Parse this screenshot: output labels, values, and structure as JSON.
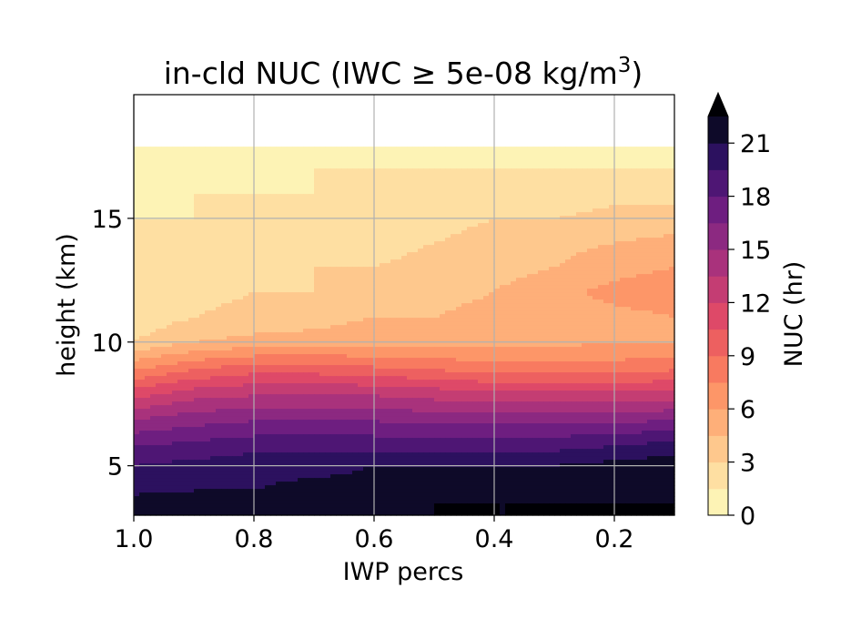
{
  "chart_data": {
    "type": "heatmap",
    "subtype": "filled-contour",
    "title_main": "in-cld NUC (IWC ",
    "title_symbol": "≥",
    "title_value": " 5e-08 kg/m",
    "title_superscript": "3",
    "title_close": ")",
    "xlabel": "IWP percs",
    "ylabel": "height (km)",
    "x_inverted": true,
    "xlim": [
      1.0,
      0.1
    ],
    "ylim": [
      3,
      20
    ],
    "x_ticks": [
      {
        "value": 1.0,
        "label": "1.0"
      },
      {
        "value": 0.8,
        "label": "0.8"
      },
      {
        "value": 0.6,
        "label": "0.6"
      },
      {
        "value": 0.4,
        "label": "0.4"
      },
      {
        "value": 0.2,
        "label": "0.2"
      }
    ],
    "y_ticks": [
      {
        "value": 5,
        "label": "5"
      },
      {
        "value": 10,
        "label": "10"
      },
      {
        "value": 15,
        "label": "15"
      }
    ],
    "grid": true,
    "colormap": "magma_r",
    "colorbar": {
      "label": "NUC (hr)",
      "min": 0,
      "max": 22.5,
      "extend": "max",
      "ticks": [
        {
          "value": 0,
          "label": "0"
        },
        {
          "value": 3,
          "label": "3"
        },
        {
          "value": 6,
          "label": "6"
        },
        {
          "value": 9,
          "label": "9"
        },
        {
          "value": 12,
          "label": "12"
        },
        {
          "value": 15,
          "label": "15"
        },
        {
          "value": 18,
          "label": "18"
        },
        {
          "value": 21,
          "label": "21"
        }
      ],
      "level_step": 1.5
    },
    "grid_x": [
      1.0,
      0.9,
      0.8,
      0.7,
      0.6,
      0.5,
      0.4,
      0.3,
      0.2,
      0.1
    ],
    "grid_y": [
      3,
      3.5,
      4,
      5,
      6,
      7,
      8,
      9,
      10,
      11,
      12,
      13,
      14,
      15,
      16,
      17,
      17.9
    ],
    "values": [
      [
        22.5,
        22.5,
        22.5,
        22.5,
        22.5,
        22.5,
        22.5,
        22.5,
        22.5,
        22.5
      ],
      [
        22,
        22,
        22,
        22,
        22,
        22.5,
        22.5,
        22.5,
        22.5,
        22.5
      ],
      [
        20.5,
        21,
        21,
        21.5,
        21.5,
        21.5,
        21.5,
        22,
        22,
        22.5
      ],
      [
        19.5,
        20,
        20.5,
        20.5,
        21,
        21,
        21,
        21,
        21.5,
        22
      ],
      [
        17.5,
        18,
        18.5,
        18.5,
        18.5,
        18.5,
        18.5,
        18.5,
        19,
        19.5
      ],
      [
        14.5,
        15.5,
        16,
        16,
        16,
        15.5,
        15.5,
        15.5,
        15.5,
        16
      ],
      [
        11,
        12.5,
        13,
        13,
        13,
        12.5,
        12,
        12,
        12,
        12
      ],
      [
        7,
        8.5,
        9.5,
        9.5,
        9,
        8.5,
        8,
        8,
        8,
        8.5
      ],
      [
        3,
        4.5,
        5,
        5,
        5.5,
        5.5,
        5.5,
        5.5,
        6,
        6
      ],
      [
        2,
        3,
        3.5,
        4,
        4.5,
        4.5,
        5,
        5,
        5.5,
        6
      ],
      [
        1.5,
        2.5,
        3,
        3,
        3.5,
        4,
        4.5,
        5.5,
        6.5,
        7
      ],
      [
        1.5,
        2,
        2.5,
        3,
        3,
        3.5,
        4,
        4.5,
        5.5,
        6
      ],
      [
        1.5,
        2,
        2,
        2.5,
        2.5,
        3,
        3.5,
        4,
        4.5,
        5
      ],
      [
        1.5,
        1.5,
        2,
        2,
        2,
        2.5,
        3,
        3,
        3.5,
        3.5
      ],
      [
        1,
        1.5,
        1.5,
        1.5,
        1.5,
        2,
        2,
        2,
        2.5,
        2.5
      ],
      [
        0.8,
        1,
        1,
        1.5,
        1.5,
        1.5,
        1.5,
        1.5,
        1.5,
        1.5
      ],
      [
        0.5,
        0.8,
        0.8,
        1,
        1,
        1,
        1,
        1,
        1,
        1
      ]
    ]
  }
}
